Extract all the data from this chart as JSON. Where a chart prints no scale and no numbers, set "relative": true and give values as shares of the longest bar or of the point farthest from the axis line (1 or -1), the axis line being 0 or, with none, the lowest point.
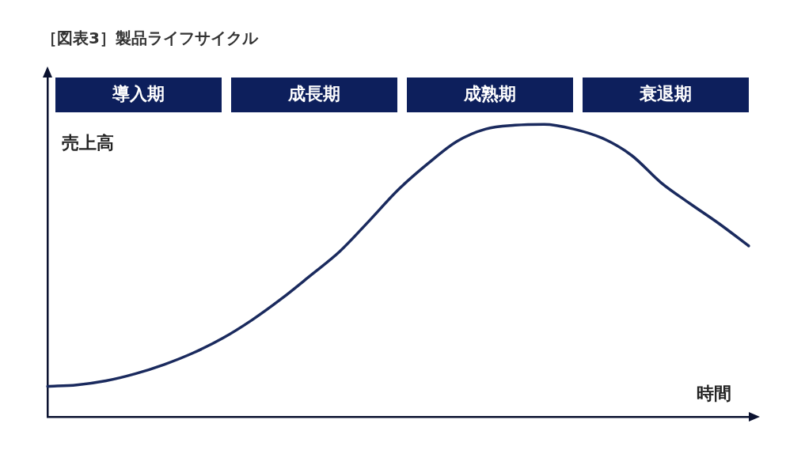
{
  "chart_data": {
    "type": "line",
    "title": "［図表3］製品ライフサイクル",
    "xlabel": "時間",
    "ylabel": "売上高",
    "relative": true,
    "marker": "none",
    "annotations": [
      "導入期",
      "成長期",
      "成熟期",
      "衰退期"
    ],
    "categories": [
      null,
      null,
      null,
      null,
      null,
      null,
      null,
      null,
      null,
      null,
      null,
      null,
      null,
      null,
      null,
      null,
      null,
      null,
      null,
      null,
      null,
      null,
      null,
      null,
      null
    ],
    "series": [
      {
        "color": "#1a2a5e",
        "values": [
          0.104,
          0.109,
          0.123,
          0.147,
          0.179,
          0.219,
          0.269,
          0.331,
          0.403,
          0.483,
          0.565,
          0.669,
          0.776,
          0.864,
          0.941,
          0.984,
          0.997,
          1.0,
          0.984,
          0.952,
          0.893,
          0.8,
          0.728,
          0.659,
          0.584
        ]
      }
    ]
  }
}
